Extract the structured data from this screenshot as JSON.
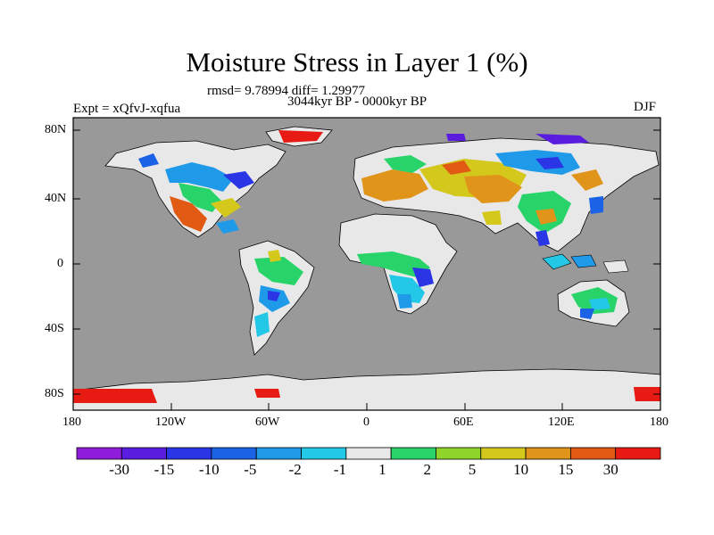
{
  "title": "Moisture Stress in Layer 1 (%)",
  "stats": "rmsd= 9.78994  diff= 1.29977",
  "period": "3044kyr BP - 0000kyr BP",
  "experiment": "Expt = xQfvJ-xqfua",
  "season": "DJF",
  "lat_labels": [
    "80N",
    "40N",
    "0",
    "40S",
    "80S"
  ],
  "lon_labels": [
    "180",
    "120W",
    "60W",
    "0",
    "60E",
    "120E",
    "180"
  ],
  "colors": {
    "ocean": "#999999",
    "background": "#ffffff"
  },
  "colorbar": {
    "labels": [
      "-30",
      "-15",
      "-10",
      "-5",
      "-2",
      "-1",
      "1",
      "2",
      "5",
      "10",
      "15",
      "30"
    ],
    "colors": [
      "#8f1bdb",
      "#5a1de0",
      "#2a35e6",
      "#1a62e6",
      "#1f9ae8",
      "#22c8e6",
      "#e8e8e8",
      "#28d46a",
      "#8fd428",
      "#d4c81c",
      "#e0941a",
      "#e05a14",
      "#e81a14"
    ]
  }
}
